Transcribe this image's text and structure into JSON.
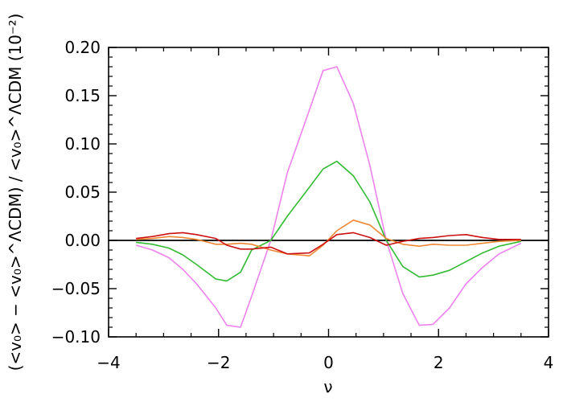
{
  "chart_data": {
    "type": "line",
    "xlabel": "ν",
    "ylabel": "(<v₀> − <v₀>^ΛCDM) / <v₀>^ΛCDM (10⁻²)",
    "xlim": [
      -4,
      4
    ],
    "ylim": [
      -0.1,
      0.2
    ],
    "xticks": [
      -4,
      -2,
      0,
      2,
      4
    ],
    "xtick_labels": [
      "−4",
      "−2",
      "0",
      "2",
      "4"
    ],
    "yticks": [
      -0.1,
      -0.05,
      0.0,
      0.05,
      0.1,
      0.15,
      0.2
    ],
    "ytick_labels": [
      "−0.10",
      "−0.05",
      "0.00",
      "0.05",
      "0.10",
      "0.15",
      "0.20"
    ],
    "reference_line": {
      "y": 0.0,
      "color": "#000000"
    },
    "x": [
      -3.5,
      -3.2,
      -2.9,
      -2.65,
      -2.4,
      -2.05,
      -1.85,
      -1.6,
      -1.4,
      -1.05,
      -0.75,
      -0.35,
      -0.1,
      0.15,
      0.45,
      0.75,
      1.05,
      1.35,
      1.65,
      1.9,
      2.2,
      2.5,
      2.8,
      3.1,
      3.5
    ],
    "series": [
      {
        "color": "#ee82ee",
        "values": [
          -0.005,
          -0.01,
          -0.018,
          -0.03,
          -0.045,
          -0.07,
          -0.088,
          -0.09,
          -0.058,
          0.0,
          0.07,
          0.135,
          0.176,
          0.18,
          0.142,
          0.078,
          0.0,
          -0.055,
          -0.088,
          -0.087,
          -0.07,
          -0.045,
          -0.028,
          -0.014,
          -0.003
        ]
      },
      {
        "color": "#33bb33",
        "values": [
          -0.002,
          -0.004,
          -0.008,
          -0.015,
          -0.025,
          -0.04,
          -0.042,
          -0.033,
          -0.01,
          0.0,
          0.025,
          0.055,
          0.074,
          0.082,
          0.067,
          0.04,
          0.0,
          -0.027,
          -0.038,
          -0.036,
          -0.031,
          -0.022,
          -0.013,
          -0.006,
          -0.001
        ]
      },
      {
        "color": "#ee8833",
        "values": [
          0.001,
          0.002,
          0.004,
          0.003,
          0.001,
          -0.004,
          -0.004,
          -0.003,
          -0.004,
          -0.01,
          -0.014,
          -0.016,
          -0.005,
          0.01,
          0.021,
          0.016,
          0.002,
          -0.004,
          -0.006,
          -0.004,
          -0.005,
          -0.005,
          -0.003,
          -0.001,
          0.0
        ]
      },
      {
        "color": "#cc1111",
        "values": [
          0.002,
          0.004,
          0.007,
          0.008,
          0.006,
          0.002,
          -0.005,
          -0.009,
          -0.009,
          -0.007,
          -0.014,
          -0.013,
          -0.004,
          0.006,
          0.008,
          0.003,
          -0.005,
          -0.001,
          0.002,
          0.003,
          0.005,
          0.006,
          0.003,
          0.001,
          0.001
        ]
      }
    ],
    "grid": false,
    "legend": false
  }
}
